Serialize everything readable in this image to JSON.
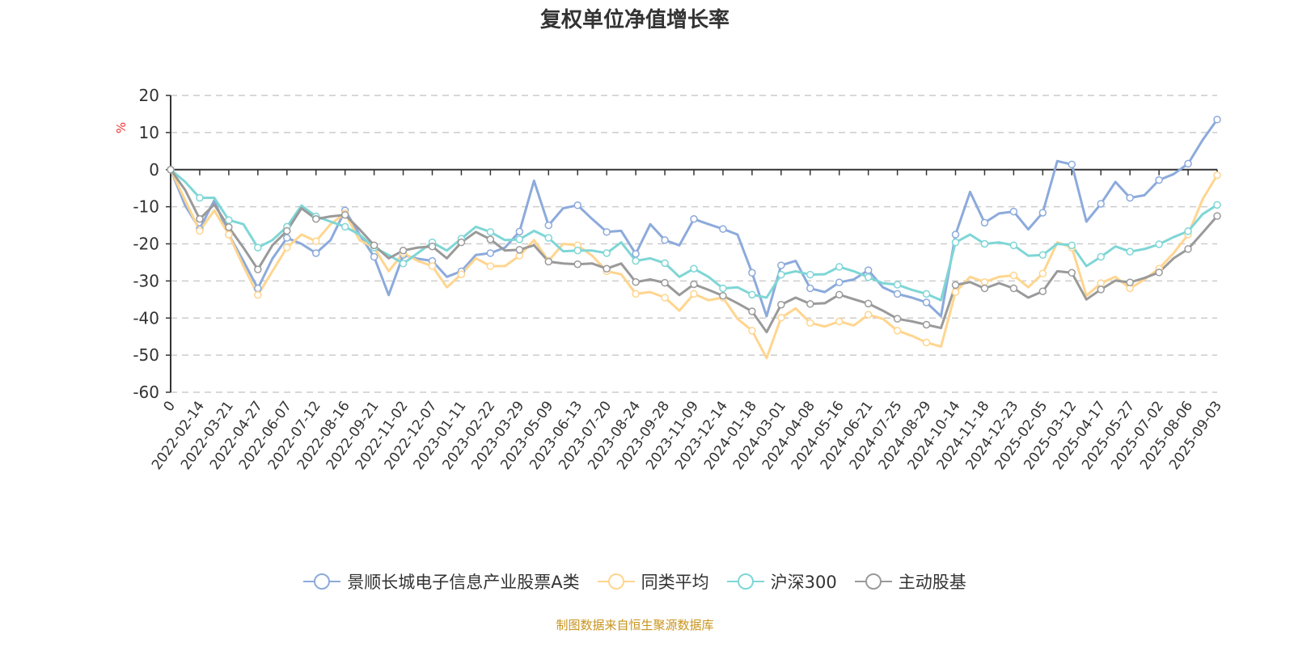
{
  "title": "复权单位净值增长率",
  "footer": "制图数据来自恒生聚源数据库",
  "chart_data": {
    "type": "line",
    "title": "复权单位净值增长率",
    "ylabel": "%",
    "ylim": [
      -60,
      20
    ],
    "yticks": [
      20,
      10,
      0,
      -10,
      -20,
      -30,
      -40,
      -50,
      -60
    ],
    "grid": true,
    "legend_position": "bottom",
    "x_labels": [
      "0",
      "2022-02-14",
      "2022-03-21",
      "2022-04-27",
      "2022-06-07",
      "2022-07-12",
      "2022-08-16",
      "2022-09-21",
      "2022-11-02",
      "2022-12-07",
      "2023-01-11",
      "2023-02-22",
      "2023-03-29",
      "2023-05-09",
      "2023-06-13",
      "2023-07-20",
      "2023-08-24",
      "2023-09-28",
      "2023-11-09",
      "2023-12-14",
      "2024-01-18",
      "2024-03-01",
      "2024-04-08",
      "2024-05-16",
      "2024-06-21",
      "2024-07-25",
      "2024-08-29",
      "2024-10-14",
      "2024-11-18",
      "2024-12-23",
      "2025-02-05",
      "2025-03-12",
      "2025-04-17",
      "2025-05-27",
      "2025-07-02",
      "2025-08-06",
      "2025-09-03"
    ],
    "series": [
      {
        "name": "景顺长城电子信息产业股票A类",
        "color": "#8caadb",
        "values": [
          0,
          -9.7,
          -16,
          -8.3,
          -17.5,
          -24.6,
          -32,
          -24,
          -18.4,
          -20,
          -22.5,
          -19,
          -11,
          -17.5,
          -23.5,
          -33.8,
          -23,
          -24,
          -24.6,
          -28.9,
          -27.4,
          -23,
          -22.5,
          -21,
          -16.7,
          -3,
          -15,
          -10.4,
          -9.6,
          -13.3,
          -16.8,
          -16.5,
          -22.7,
          -14.7,
          -19,
          -20.4,
          -13.3,
          -14.7,
          -16,
          -17.5,
          -27.8,
          -39.5,
          -25.8,
          -24.6,
          -32,
          -33,
          -30.4,
          -29.6,
          -27.1,
          -31.7,
          -33.5,
          -34.5,
          -35.8,
          -39.5,
          -17.5,
          -6,
          -14.3,
          -11.8,
          -11.3,
          -16.1,
          -11.6,
          2.3,
          1.4,
          -14,
          -9.2,
          -3.3,
          -7.6,
          -6.9,
          -2.8,
          -1.2,
          1.6,
          8,
          13.5
        ]
      },
      {
        "name": "同类平均",
        "color": "#ffd58f",
        "values": [
          0,
          -8.3,
          -16.5,
          -11,
          -17.5,
          -26,
          -33.8,
          -27.4,
          -21,
          -17.5,
          -19.3,
          -14.7,
          -11.8,
          -19,
          -21,
          -27.4,
          -22.5,
          -24.6,
          -26,
          -31.7,
          -28.2,
          -23.9,
          -26,
          -26,
          -23.2,
          -19,
          -24.6,
          -20,
          -20.4,
          -23.2,
          -27.4,
          -28.2,
          -33.5,
          -33,
          -34.5,
          -38,
          -33.5,
          -35.2,
          -34.5,
          -40.2,
          -43.4,
          -50.8,
          -39.9,
          -37.4,
          -41.3,
          -42.3,
          -40.9,
          -42,
          -39.1,
          -40.2,
          -43.4,
          -44.8,
          -46.6,
          -47.7,
          -33,
          -28.9,
          -30.3,
          -28.9,
          -28.5,
          -31.7,
          -28,
          -19.6,
          -21,
          -34,
          -30.6,
          -28.9,
          -32,
          -29.6,
          -26.7,
          -22.5,
          -17.5,
          -8,
          -1.5
        ]
      },
      {
        "name": "沪深300",
        "color": "#7fd6d6",
        "values": [
          0,
          -3.3,
          -7.6,
          -7.6,
          -13.6,
          -14.7,
          -21,
          -19,
          -15.4,
          -9.7,
          -12.6,
          -14,
          -15.4,
          -17.5,
          -21,
          -23,
          -25.3,
          -22.5,
          -19.6,
          -21.8,
          -18.6,
          -15.4,
          -16.8,
          -19,
          -18.8,
          -16.5,
          -18.4,
          -22,
          -21.8,
          -21.8,
          -22.5,
          -19.6,
          -24.6,
          -23.9,
          -25.2,
          -28.9,
          -26.7,
          -28.9,
          -32,
          -31.7,
          -33.7,
          -34.5,
          -28.3,
          -27.4,
          -28.3,
          -28.2,
          -26.2,
          -27.4,
          -29,
          -30.6,
          -31,
          -32.4,
          -33.5,
          -35.2,
          -19.6,
          -17.5,
          -20,
          -19.6,
          -20.4,
          -23.2,
          -23,
          -20,
          -20.4,
          -26,
          -23.5,
          -20.7,
          -22.1,
          -21.4,
          -20.1,
          -18.2,
          -16.6,
          -12,
          -9.5
        ]
      },
      {
        "name": "主动股基",
        "color": "#9a9a9a",
        "values": [
          0,
          -5.5,
          -13.3,
          -9.4,
          -15.5,
          -21,
          -26.9,
          -20.4,
          -16.5,
          -10.4,
          -13.3,
          -12.6,
          -12.2,
          -16.1,
          -20.4,
          -23.9,
          -21.8,
          -21,
          -20.7,
          -23.9,
          -19.6,
          -16.8,
          -18.8,
          -21.8,
          -21.6,
          -20.4,
          -24.8,
          -25.3,
          -25.5,
          -25.3,
          -26.7,
          -25.3,
          -30.3,
          -29.6,
          -30.5,
          -33.8,
          -30.9,
          -32.4,
          -34,
          -36,
          -38.2,
          -43.8,
          -36.4,
          -34.5,
          -36.2,
          -36,
          -33.7,
          -34.9,
          -36.1,
          -38,
          -40.2,
          -40.9,
          -41.8,
          -42.7,
          -31.1,
          -30.3,
          -32,
          -30.6,
          -32,
          -34.5,
          -32.8,
          -27.4,
          -27.8,
          -35,
          -32.3,
          -29.9,
          -30.4,
          -29.2,
          -27.7,
          -23.9,
          -21.4,
          -17,
          -12.5
        ]
      }
    ]
  }
}
